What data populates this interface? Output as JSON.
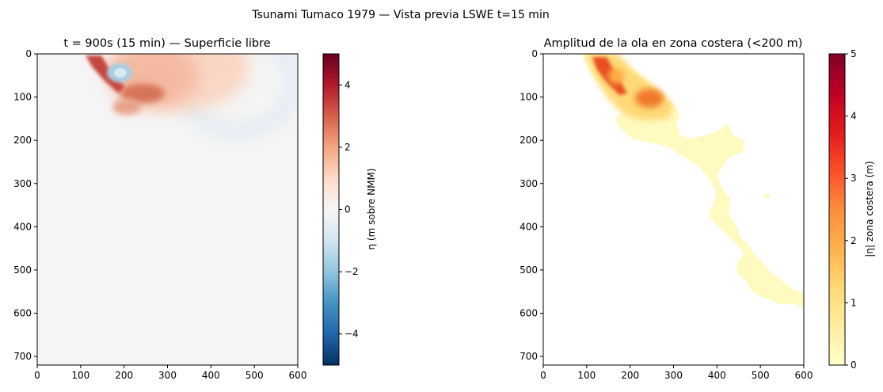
{
  "figure": {
    "suptitle": "Tsunami Tumaco 1979 — Vista previa LSWE t=15 min"
  },
  "chart_data": [
    {
      "type": "heatmap",
      "title": "t = 900s (15 min) — Superficie libre",
      "xlim": [
        0,
        600
      ],
      "ylim": [
        720,
        0
      ],
      "x_ticks": [
        "0",
        "100",
        "200",
        "300",
        "400",
        "500",
        "600"
      ],
      "y_ticks": [
        "0",
        "100",
        "200",
        "300",
        "400",
        "500",
        "600",
        "700"
      ],
      "colormap": "RdBu_r",
      "colorbar": {
        "label": "η (m sobre NMM)",
        "range": [
          -5,
          5
        ],
        "ticks": [
          "−4",
          "−2",
          "0",
          "2",
          "4"
        ]
      },
      "background_value": 0,
      "features": [
        {
          "name": "wave crest (north-west coast)",
          "x": [
            100,
            160
          ],
          "y": [
            20,
            90
          ],
          "value": 3.5
        },
        {
          "name": "trough",
          "x": [
            150,
            210
          ],
          "y": [
            20,
            60
          ],
          "value": -1.2
        },
        {
          "name": "crest (central)",
          "x": [
            200,
            280
          ],
          "y": [
            80,
            130
          ],
          "value": 3.0
        },
        {
          "name": "positive front",
          "x": [
            120,
            380
          ],
          "y": [
            0,
            150
          ],
          "value": 1.0
        },
        {
          "name": "negative ring",
          "x": [
            250,
            500
          ],
          "y": [
            0,
            200
          ],
          "value": -0.3
        }
      ]
    },
    {
      "type": "heatmap",
      "title": "Amplitud de la ola en zona costera (<200 m)",
      "xlim": [
        0,
        600
      ],
      "ylim": [
        720,
        0
      ],
      "x_ticks": [
        "0",
        "100",
        "200",
        "300",
        "400",
        "500",
        "600"
      ],
      "y_ticks": [
        "0",
        "100",
        "200",
        "300",
        "400",
        "500",
        "600",
        "700"
      ],
      "colormap": "YlOrRd",
      "colorbar": {
        "label": "|η| zona costera (m)",
        "range": [
          0,
          5
        ],
        "ticks": [
          "0",
          "1",
          "2",
          "3",
          "4",
          "5"
        ]
      },
      "coastal_strip_value": 0.2,
      "features": [
        {
          "name": "high amplitude (north-west)",
          "x": [
            100,
            160
          ],
          "y": [
            0,
            100
          ],
          "value": 3.2
        },
        {
          "name": "high amplitude (central)",
          "x": [
            200,
            280
          ],
          "y": [
            80,
            130
          ],
          "value": 3.0
        },
        {
          "name": "moderate amplitude",
          "x": [
            90,
            300
          ],
          "y": [
            0,
            160
          ],
          "value": 1.5
        }
      ]
    }
  ]
}
